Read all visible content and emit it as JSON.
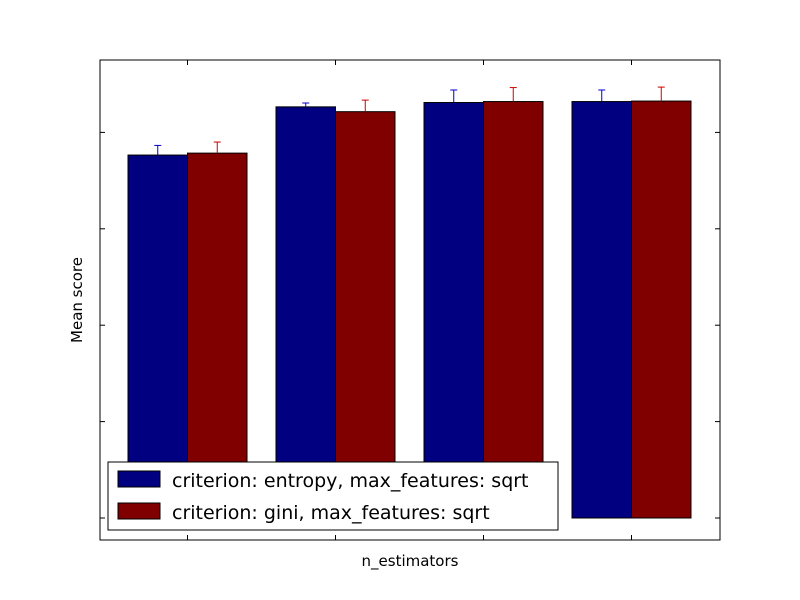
{
  "chart_data": {
    "type": "bar",
    "title": "",
    "xlabel": "n_estimators",
    "ylabel": "Mean score",
    "ylim": [
      0.0,
      1.0
    ],
    "y_ticks": [
      0.0,
      0.2,
      0.4,
      0.6,
      0.8,
      1.0
    ],
    "tick_labels_visible": false,
    "categories": [
      "",
      "",
      "",
      ""
    ],
    "series": [
      {
        "name": "criterion: entropy, max_features: sqrt",
        "color": "#000080",
        "values": [
          0.753,
          0.853,
          0.862,
          0.864
        ],
        "errors": [
          0.02,
          0.008,
          0.026,
          0.024
        ]
      },
      {
        "name": "criterion: gini, max_features: sqrt",
        "color": "#800000",
        "values": [
          0.757,
          0.843,
          0.864,
          0.865
        ],
        "errors": [
          0.023,
          0.024,
          0.029,
          0.029
        ]
      }
    ],
    "grid": false,
    "legend": {
      "placement": "lower-left"
    }
  }
}
